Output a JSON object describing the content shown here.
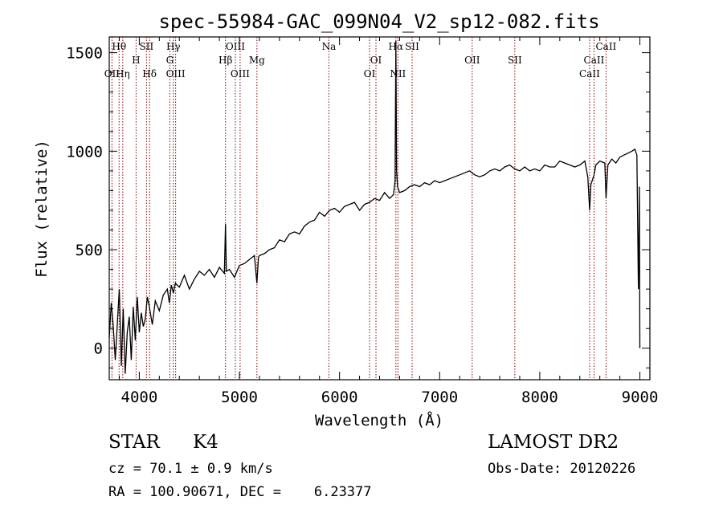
{
  "chart_data": {
    "type": "line",
    "title": "spec-55984-GAC_099N04_V2_sp12-082.fits",
    "xlabel": "Wavelength (Å)",
    "ylabel": "Flux (relative)",
    "xlim": [
      3700,
      9100
    ],
    "ylim": [
      -160,
      1580
    ],
    "xticks": [
      4000,
      5000,
      6000,
      7000,
      8000,
      9000
    ],
    "yticks": [
      0,
      500,
      1000,
      1500
    ],
    "grid": false,
    "line_color": "#000000",
    "marker_color": "#8b0000",
    "line_markers": [
      {
        "label": "Hθ",
        "x": 3798,
        "row": 1
      },
      {
        "label": "OII",
        "x": 3727,
        "row": 3
      },
      {
        "label": "Hη",
        "x": 3835,
        "row": 3
      },
      {
        "label": "SII",
        "x": 4072,
        "row": 1
      },
      {
        "label": "H",
        "x": 3968,
        "row": 2
      },
      {
        "label": "Hδ",
        "x": 4102,
        "row": 3
      },
      {
        "label": "Hγ",
        "x": 4340,
        "row": 1
      },
      {
        "label": "G",
        "x": 4305,
        "row": 2
      },
      {
        "label": "OIII",
        "x": 4363,
        "row": 3
      },
      {
        "label": "OIII",
        "x": 4959,
        "row": 1
      },
      {
        "label": "Hβ",
        "x": 4861,
        "row": 2
      },
      {
        "label": "OIII",
        "x": 5007,
        "row": 3
      },
      {
        "label": "Mg",
        "x": 5175,
        "row": 2
      },
      {
        "label": "Na",
        "x": 5894,
        "row": 1
      },
      {
        "label": "OI",
        "x": 6364,
        "row": 2
      },
      {
        "label": "OI",
        "x": 6300,
        "row": 3
      },
      {
        "label": "Hα",
        "x": 6563,
        "row": 1
      },
      {
        "label": "SII",
        "x": 6725,
        "row": 1
      },
      {
        "label": "NII",
        "x": 6583,
        "row": 3
      },
      {
        "label": "OII",
        "x": 7325,
        "row": 2
      },
      {
        "label": "SII",
        "x": 7751,
        "row": 2
      },
      {
        "label": "CaII",
        "x": 8662,
        "row": 1
      },
      {
        "label": "CaII",
        "x": 8542,
        "row": 2
      },
      {
        "label": "CaII",
        "x": 8498,
        "row": 3
      }
    ],
    "series": [
      {
        "x": [
          3700,
          3720,
          3740,
          3760,
          3780,
          3800,
          3820,
          3840,
          3860,
          3880,
          3900,
          3920,
          3940,
          3960,
          3980,
          4000,
          4020,
          4040,
          4060,
          4080,
          4100,
          4130,
          4160,
          4200,
          4240,
          4280,
          4300,
          4320,
          4340,
          4360,
          4400,
          4450,
          4500,
          4550,
          4600,
          4650,
          4700,
          4750,
          4800,
          4850,
          4861,
          4870,
          4900,
          4950,
          5000,
          5050,
          5100,
          5150,
          5175,
          5190,
          5200,
          5250,
          5300,
          5350,
          5400,
          5450,
          5500,
          5550,
          5600,
          5650,
          5700,
          5750,
          5800,
          5850,
          5900,
          5950,
          6000,
          6050,
          6100,
          6150,
          6200,
          6250,
          6300,
          6350,
          6400,
          6450,
          6500,
          6540,
          6555,
          6563,
          6570,
          6580,
          6600,
          6650,
          6700,
          6750,
          6800,
          6850,
          6900,
          6950,
          7000,
          7050,
          7100,
          7150,
          7200,
          7250,
          7300,
          7350,
          7400,
          7450,
          7500,
          7550,
          7600,
          7650,
          7700,
          7750,
          7800,
          7850,
          7900,
          7950,
          8000,
          8050,
          8100,
          8150,
          8200,
          8250,
          8300,
          8350,
          8400,
          8450,
          8480,
          8498,
          8510,
          8542,
          8560,
          8600,
          8650,
          8662,
          8680,
          8720,
          8760,
          8800,
          8840,
          8880,
          8920,
          8950,
          8970,
          8985,
          8995,
          9000
        ],
        "y": [
          50,
          230,
          110,
          -60,
          120,
          300,
          -90,
          200,
          -130,
          80,
          160,
          -60,
          210,
          40,
          260,
          80,
          180,
          110,
          150,
          260,
          210,
          120,
          240,
          190,
          270,
          300,
          230,
          320,
          280,
          330,
          310,
          370,
          300,
          350,
          390,
          370,
          400,
          360,
          410,
          380,
          630,
          390,
          400,
          360,
          420,
          430,
          450,
          470,
          330,
          460,
          470,
          480,
          500,
          510,
          550,
          540,
          580,
          590,
          580,
          620,
          640,
          650,
          690,
          670,
          700,
          710,
          690,
          720,
          730,
          740,
          700,
          730,
          740,
          760,
          750,
          790,
          760,
          780,
          850,
          1560,
          900,
          820,
          790,
          800,
          820,
          830,
          820,
          840,
          830,
          850,
          840,
          850,
          860,
          870,
          880,
          890,
          900,
          880,
          870,
          880,
          900,
          910,
          900,
          920,
          930,
          910,
          900,
          920,
          900,
          910,
          900,
          930,
          920,
          920,
          950,
          940,
          930,
          920,
          930,
          950,
          870,
          700,
          830,
          880,
          930,
          950,
          940,
          760,
          930,
          960,
          940,
          970,
          980,
          990,
          1000,
          1010,
          980,
          300,
          820,
          0
        ]
      }
    ]
  },
  "info": {
    "class_label": "STAR",
    "subclass_label": "K4",
    "cz_line": "cz = 70.1 ± 0.9 km/s",
    "coords_line": "RA = 100.90671, DEC =    6.23377",
    "survey_label": "LAMOST DR2",
    "obs_date_line": "Obs-Date: 20120226"
  }
}
